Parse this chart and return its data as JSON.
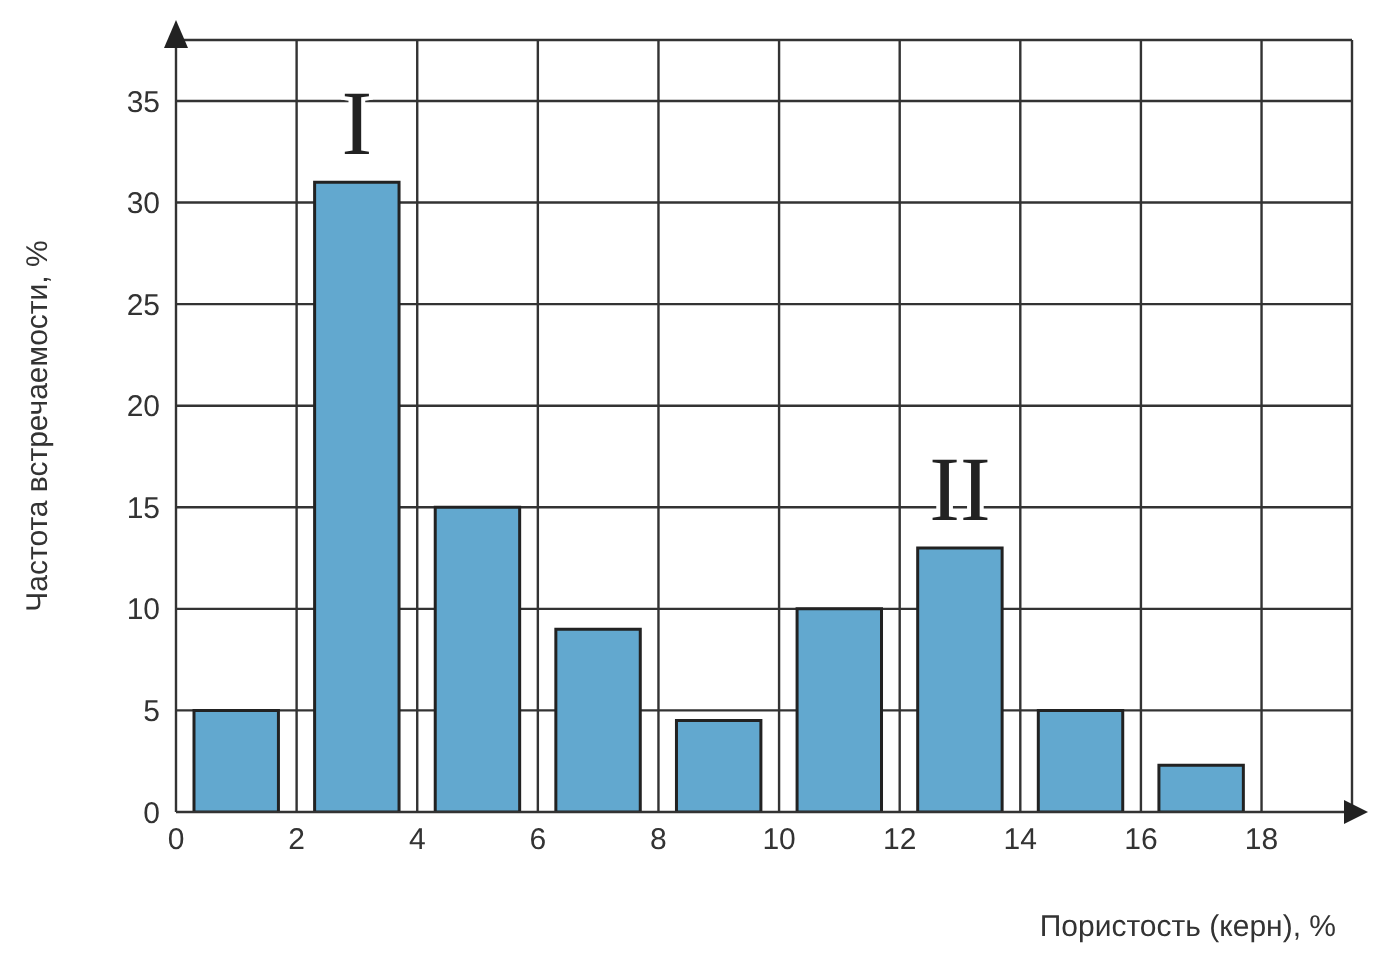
{
  "chart_data": {
    "type": "histogram",
    "xlabel": "Пористость (керн), %",
    "ylabel": "Частота встречаемости, %",
    "bins": [
      0,
      2,
      4,
      6,
      8,
      10,
      12,
      14,
      16,
      18
    ],
    "values": [
      5,
      31,
      15,
      9,
      4.5,
      10,
      13,
      5,
      2.3
    ],
    "color": "#62a8cf",
    "xlim": [
      0,
      19.5
    ],
    "ylim": [
      0,
      38
    ],
    "xticks": [
      0,
      2,
      4,
      6,
      8,
      10,
      12,
      14,
      16,
      18
    ],
    "yticks": [
      0,
      5,
      10,
      15,
      20,
      25,
      30,
      35
    ],
    "grid": true,
    "annotations": [
      "I",
      "II"
    ]
  }
}
